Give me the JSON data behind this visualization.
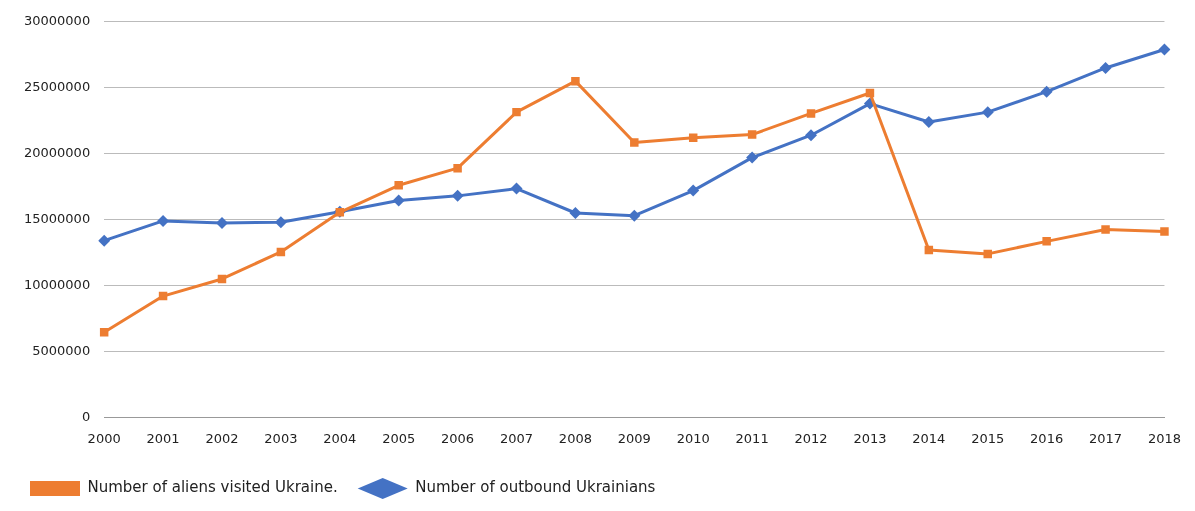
{
  "chart_data": {
    "type": "line",
    "categories": [
      "2000",
      "2001",
      "2002",
      "2003",
      "2004",
      "2005",
      "2006",
      "2007",
      "2008",
      "2009",
      "2010",
      "2011",
      "2012",
      "2013",
      "2014",
      "2015",
      "2016",
      "2017",
      "2018"
    ],
    "series": [
      {
        "name": "Number of outbound Ukrainians",
        "color": "#4472c4",
        "marker": "diamond",
        "values": [
          13400000,
          14900000,
          14750000,
          14800000,
          15600000,
          16450000,
          16800000,
          17350000,
          15500000,
          15300000,
          17200000,
          19700000,
          21400000,
          23800000,
          22400000,
          23150000,
          24700000,
          26500000,
          27900000
        ]
      },
      {
        "name": "Number of aliens visited Ukraine.",
        "color": "#ed7d31",
        "marker": "square",
        "values": [
          6450000,
          9200000,
          10500000,
          12550000,
          15550000,
          17600000,
          18900000,
          23150000,
          25500000,
          20850000,
          21200000,
          21450000,
          23050000,
          24600000,
          12700000,
          12400000,
          13350000,
          14250000,
          14100000
        ]
      }
    ],
    "ylim": [
      0,
      30000000
    ],
    "yticks": [
      0,
      5000000,
      10000000,
      15000000,
      20000000,
      25000000,
      30000000
    ],
    "grid": "y",
    "legend": "bottom",
    "line_style": "solid"
  }
}
